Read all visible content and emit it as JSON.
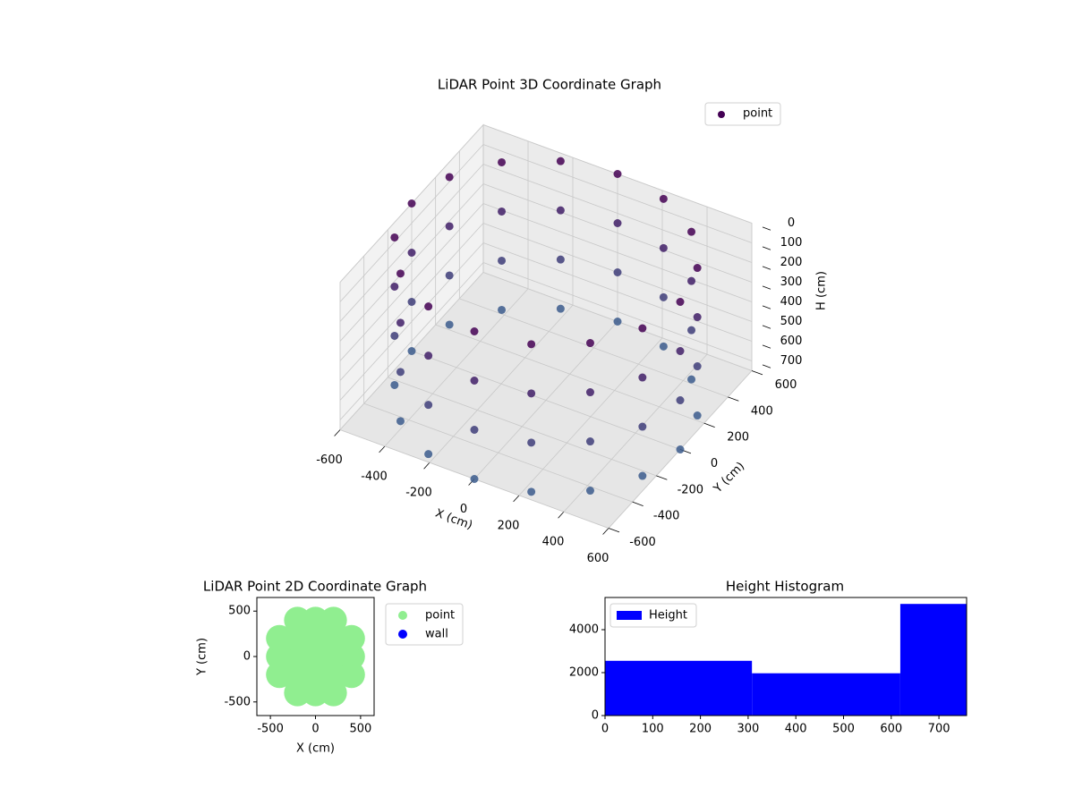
{
  "chart_data": [
    {
      "type": "scatter3d",
      "title": "LiDAR Point 3D Coordinate Graph",
      "xlabel": "X (cm)",
      "ylabel": "Y (cm)",
      "zlabel": "H (cm)",
      "xlim": [
        -600,
        600
      ],
      "ylim": [
        -600,
        600
      ],
      "zlim": [
        0,
        750
      ],
      "invert_z": true,
      "xticks": [
        -600,
        -400,
        -200,
        0,
        200,
        400,
        600
      ],
      "yticks": [
        -600,
        -400,
        -200,
        0,
        200,
        400,
        600
      ],
      "zticks": [
        0,
        100,
        200,
        300,
        400,
        500,
        600,
        700
      ],
      "legend": "upper right",
      "series": [
        {
          "name": "point",
          "color": "#440154",
          "colors": [
            "#440154",
            "#3b5b8c"
          ],
          "x": [
            600,
            554,
            424,
            230,
            0,
            -230,
            -424,
            -554,
            -600,
            -554,
            -424,
            -230,
            0,
            230,
            424,
            554,
            600,
            554,
            424,
            230,
            0,
            -230,
            -424,
            -554,
            -600,
            -554,
            -424,
            -230,
            0,
            230,
            424,
            554,
            600,
            554,
            424,
            230,
            0,
            -230,
            -424,
            -554,
            -600,
            -554,
            -424,
            -230,
            0,
            230,
            424,
            554,
            600,
            554,
            424,
            230,
            0,
            -230,
            -424,
            -554,
            -600,
            -554,
            -424,
            -230,
            0,
            230,
            424,
            554
          ],
          "y": [
            0,
            230,
            424,
            554,
            600,
            554,
            424,
            230,
            0,
            -230,
            -424,
            -554,
            -600,
            -554,
            -424,
            -230,
            0,
            230,
            424,
            554,
            600,
            554,
            424,
            230,
            0,
            -230,
            -424,
            -554,
            -600,
            -554,
            -424,
            -230,
            0,
            230,
            424,
            554,
            600,
            554,
            424,
            230,
            0,
            -230,
            -424,
            -554,
            -600,
            -554,
            -424,
            -230,
            0,
            230,
            424,
            554,
            600,
            554,
            424,
            230,
            0,
            -230,
            -424,
            -554,
            -600,
            -554,
            -424,
            -230
          ],
          "z": [
            0,
            0,
            0,
            0,
            0,
            0,
            0,
            0,
            0,
            0,
            0,
            0,
            0,
            0,
            0,
            0,
            250,
            250,
            250,
            250,
            250,
            250,
            250,
            250,
            250,
            250,
            250,
            250,
            250,
            250,
            250,
            250,
            500,
            500,
            500,
            500,
            500,
            500,
            500,
            500,
            500,
            500,
            500,
            500,
            500,
            500,
            500,
            500,
            750,
            750,
            750,
            750,
            750,
            750,
            750,
            750,
            750,
            750,
            750,
            750,
            750,
            750,
            750,
            750
          ]
        }
      ]
    },
    {
      "type": "scatter",
      "title": "LiDAR Point 2D Coordinate Graph",
      "xlabel": "X (cm)",
      "ylabel": "Y (cm)",
      "xlim": [
        -650,
        650
      ],
      "ylim": [
        -650,
        650
      ],
      "xticks": [
        -500,
        0,
        500
      ],
      "yticks": [
        -500,
        0,
        500
      ],
      "legend": "outside right",
      "series": [
        {
          "name": "point",
          "color": "#90ee90",
          "x": [
            -400,
            -400,
            -400,
            -200,
            -200,
            -200,
            -200,
            -200,
            0,
            0,
            0,
            0,
            0,
            200,
            200,
            200,
            200,
            200,
            400,
            400,
            400
          ],
          "y": [
            -200,
            0,
            200,
            -400,
            -200,
            0,
            200,
            400,
            -400,
            -200,
            0,
            200,
            400,
            -400,
            -200,
            0,
            200,
            400,
            -200,
            0,
            200
          ]
        },
        {
          "name": "wall",
          "color": "#0000ff",
          "x": [],
          "y": []
        }
      ]
    },
    {
      "type": "histogram",
      "title": "Height Histogram",
      "legend": "upper left",
      "series": [
        {
          "name": "Height",
          "color": "#0000ff",
          "bins": [
            0,
            308,
            619,
            758
          ],
          "values": [
            2550,
            1970,
            5200
          ]
        }
      ],
      "xlim": [
        0,
        758
      ],
      "ylim": [
        0,
        5500
      ],
      "xticks": [
        0,
        100,
        200,
        300,
        400,
        500,
        600,
        700
      ],
      "yticks": [
        0,
        2000,
        4000
      ]
    }
  ]
}
